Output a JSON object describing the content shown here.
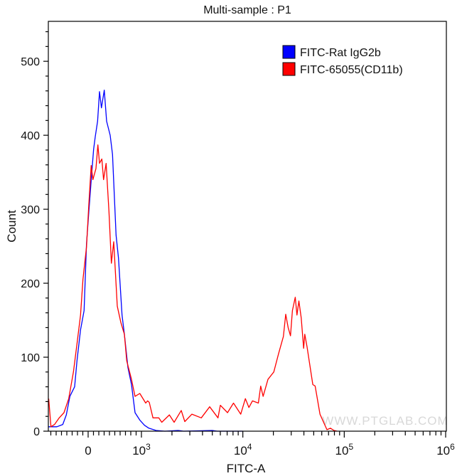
{
  "chart_data": {
    "type": "line",
    "title": "Multi-sample : P1",
    "xlabel": "FITC-A",
    "ylabel": "Count",
    "xscale": "biexponential (linear near 0, log above 10^3)",
    "xlim": [
      -740,
      1000000
    ],
    "ylim": [
      0,
      554
    ],
    "grid": false,
    "legend_position": "top-right",
    "watermark": "WWW.PTGLAB.COM",
    "y_ticks": [
      0,
      100,
      200,
      300,
      400,
      500
    ],
    "x_ticks": [
      {
        "value": 0,
        "base": "0",
        "exp": ""
      },
      {
        "value": 1000,
        "base": "10",
        "exp": "3"
      },
      {
        "value": 10000,
        "base": "10",
        "exp": "4"
      },
      {
        "value": 100000,
        "base": "10",
        "exp": "5"
      },
      {
        "value": 1000000,
        "base": "10",
        "exp": "6"
      }
    ],
    "series": [
      {
        "name": "FITC-Rat IgG2b",
        "color": "#0000ff",
        "points": [
          [
            -740,
            6
          ],
          [
            -587,
            6
          ],
          [
            -476,
            9
          ],
          [
            -409,
            22
          ],
          [
            -342,
            47
          ],
          [
            -253,
            60
          ],
          [
            -209,
            95
          ],
          [
            -142,
            137
          ],
          [
            -76,
            163
          ],
          [
            -31,
            253
          ],
          [
            13,
            297
          ],
          [
            58,
            339
          ],
          [
            102,
            381
          ],
          [
            133,
            398
          ],
          [
            178,
            419
          ],
          [
            213,
            459
          ],
          [
            249,
            437
          ],
          [
            302,
            461
          ],
          [
            347,
            419
          ],
          [
            413,
            400
          ],
          [
            458,
            374
          ],
          [
            524,
            265
          ],
          [
            569,
            234
          ],
          [
            636,
            157
          ],
          [
            680,
            131
          ],
          [
            747,
            86
          ],
          [
            813,
            63
          ],
          [
            880,
            25
          ],
          [
            969,
            15
          ],
          [
            1072,
            8
          ],
          [
            1183,
            4
          ],
          [
            1395,
            1
          ],
          [
            1700,
            0
          ],
          [
            2300,
            1
          ],
          [
            2600,
            0
          ],
          [
            5000,
            1
          ],
          [
            5600,
            0
          ],
          [
            10000,
            0
          ]
        ]
      },
      {
        "name": "FITC-65055(CD11b)",
        "color": "#ff0000",
        "points": [
          [
            -740,
            44
          ],
          [
            -697,
            6
          ],
          [
            -631,
            9
          ],
          [
            -542,
            18
          ],
          [
            -453,
            25
          ],
          [
            -364,
            44
          ],
          [
            -276,
            80
          ],
          [
            -209,
            118
          ],
          [
            -142,
            157
          ],
          [
            -98,
            205
          ],
          [
            -31,
            249
          ],
          [
            13,
            307
          ],
          [
            58,
            359
          ],
          [
            89,
            340
          ],
          [
            147,
            355
          ],
          [
            182,
            387
          ],
          [
            213,
            362
          ],
          [
            258,
            368
          ],
          [
            289,
            340
          ],
          [
            338,
            362
          ],
          [
            391,
            297
          ],
          [
            436,
            227
          ],
          [
            480,
            256
          ],
          [
            547,
            169
          ],
          [
            613,
            147
          ],
          [
            680,
            131
          ],
          [
            724,
            95
          ],
          [
            813,
            70
          ],
          [
            880,
            47
          ],
          [
            969,
            51
          ],
          [
            1102,
            38
          ],
          [
            1149,
            41
          ],
          [
            1194,
            39
          ],
          [
            1298,
            18
          ],
          [
            1483,
            18
          ],
          [
            1586,
            12
          ],
          [
            1886,
            22
          ],
          [
            2101,
            12
          ],
          [
            2468,
            28
          ],
          [
            2675,
            13
          ],
          [
            3145,
            23
          ],
          [
            3889,
            18
          ],
          [
            4710,
            33
          ],
          [
            5685,
            18
          ],
          [
            6000,
            35
          ],
          [
            7057,
            25
          ],
          [
            8086,
            38
          ],
          [
            9530,
            23
          ],
          [
            10580,
            44
          ],
          [
            11470,
            32
          ],
          [
            12450,
            41
          ],
          [
            14220,
            38
          ],
          [
            15010,
            61
          ],
          [
            15840,
            47
          ],
          [
            17680,
            70
          ],
          [
            20200,
            80
          ],
          [
            22530,
            105
          ],
          [
            25100,
            128
          ],
          [
            26500,
            158
          ],
          [
            27960,
            140
          ],
          [
            29500,
            129
          ],
          [
            30840,
            163
          ],
          [
            32870,
            181
          ],
          [
            34150,
            157
          ],
          [
            35670,
            176
          ],
          [
            37640,
            153
          ],
          [
            39790,
            112
          ],
          [
            40830,
            131
          ],
          [
            42960,
            114
          ],
          [
            48960,
            63
          ],
          [
            51690,
            61
          ],
          [
            57610,
            23
          ],
          [
            64010,
            9
          ],
          [
            67500,
            2
          ],
          [
            73100,
            4
          ],
          [
            79240,
            1
          ],
          [
            85000,
            0
          ]
        ]
      }
    ]
  }
}
